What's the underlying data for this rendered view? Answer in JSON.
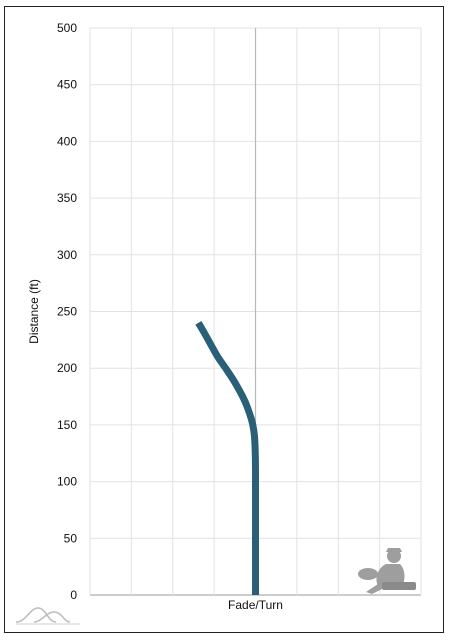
{
  "chart_data": {
    "type": "line",
    "title": "",
    "xlabel": "Fade/Turn",
    "ylabel": "Distance (ft)",
    "ylim": [
      0,
      500
    ],
    "yticks": [
      "0",
      "50",
      "100",
      "150",
      "200",
      "250",
      "300",
      "350",
      "400",
      "450",
      "500"
    ],
    "grid": true,
    "series": [
      {
        "color": "#2a5f78",
        "x": [
          0,
          0,
          0,
          0,
          -0.1,
          -0.3,
          -0.7,
          -1.2,
          -1.9,
          -2.7,
          -3.6,
          -4.6,
          -5.7,
          -6.9
        ],
        "y": [
          0,
          50,
          100,
          120,
          140,
          150,
          160,
          170,
          180,
          190,
          200,
          210,
          225,
          240
        ]
      }
    ],
    "xlim": [
      -20,
      20
    ]
  },
  "watermark": {
    "left_icon": "flight-curves-icon",
    "right_icon": "disc-golfer-icon"
  }
}
